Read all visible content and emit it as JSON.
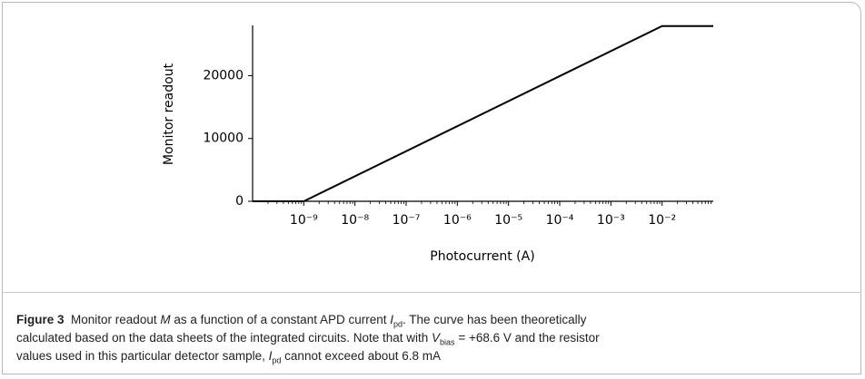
{
  "chart_data": {
    "type": "line",
    "x_label": "Photocurrent (A)",
    "y_label": "Monitor readout",
    "x": [
      1e-10,
      1e-09,
      0.01,
      0.1
    ],
    "series": [
      {
        "color": "#000000",
        "values": [
          0,
          0,
          27900,
          27900
        ]
      }
    ],
    "xlim": [
      1e-10,
      0.1
    ],
    "xscale": "log",
    "xticks": [
      {
        "value": 1e-09,
        "label": "10⁻⁹"
      },
      {
        "value": 1e-08,
        "label": "10⁻⁸"
      },
      {
        "value": 1e-07,
        "label": "10⁻⁷"
      },
      {
        "value": 1e-06,
        "label": "10⁻⁶"
      },
      {
        "value": 1e-05,
        "label": "10⁻⁵"
      },
      {
        "value": 0.0001,
        "label": "10⁻⁴"
      },
      {
        "value": 0.001,
        "label": "10⁻³"
      },
      {
        "value": 0.01,
        "label": "10⁻²"
      }
    ],
    "minor_ticks": true,
    "ylim": [
      0,
      28000
    ],
    "yticks": [
      0,
      10000,
      20000
    ],
    "grid": false
  },
  "caption": {
    "parts": [
      "Figure 3",
      "Monitor readout ",
      "M",
      " as a function of a constant APD current ",
      "I",
      "pd",
      ". The curve has been theoretically",
      "calculated based on the data sheets of the integrated circuits. Note that with ",
      "V",
      "bias",
      " = +68.6 V and the resistor",
      "values used in this particular detector sample, ",
      "I",
      "pd",
      " cannot exceed about 6.8 mA"
    ]
  }
}
